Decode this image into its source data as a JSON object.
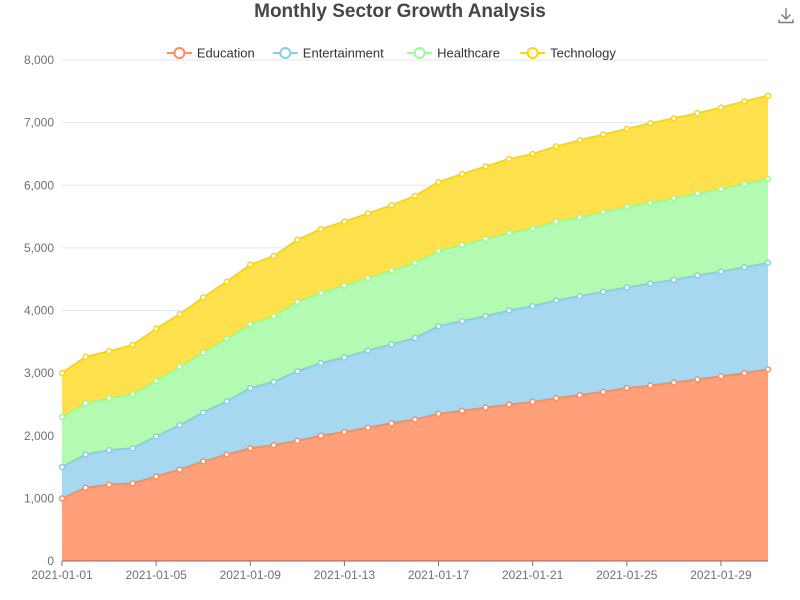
{
  "toolbar": {
    "download_icon": "download-icon"
  },
  "chart_data": {
    "type": "area",
    "stacked": true,
    "title": "Monthly Sector Growth Analysis",
    "xlabel": "",
    "ylabel": "",
    "ylim": [
      0,
      8000
    ],
    "yticks": [
      0,
      1000,
      2000,
      3000,
      4000,
      5000,
      6000,
      7000,
      8000
    ],
    "ytick_labels": [
      "0",
      "1,000",
      "2,000",
      "3,000",
      "4,000",
      "5,000",
      "6,000",
      "7,000",
      "8,000"
    ],
    "x": [
      "2021-01-01",
      "2021-01-02",
      "2021-01-03",
      "2021-01-04",
      "2021-01-05",
      "2021-01-06",
      "2021-01-07",
      "2021-01-08",
      "2021-01-09",
      "2021-01-10",
      "2021-01-11",
      "2021-01-12",
      "2021-01-13",
      "2021-01-14",
      "2021-01-15",
      "2021-01-16",
      "2021-01-17",
      "2021-01-18",
      "2021-01-19",
      "2021-01-20",
      "2021-01-21",
      "2021-01-22",
      "2021-01-23",
      "2021-01-24",
      "2021-01-25",
      "2021-01-26",
      "2021-01-27",
      "2021-01-28",
      "2021-01-29",
      "2021-01-30",
      "2021-01-31"
    ],
    "xtick_labels": [
      "2021-01-01",
      "2021-01-05",
      "2021-01-09",
      "2021-01-13",
      "2021-01-17",
      "2021-01-21",
      "2021-01-25",
      "2021-01-29"
    ],
    "grid": {
      "horizontal": true,
      "vertical": false
    },
    "legend_position": "top-center",
    "series": [
      {
        "name": "Education",
        "color": "#ff8c5a",
        "fill": "#ffa07a",
        "values": [
          1000,
          1170,
          1220,
          1240,
          1350,
          1460,
          1590,
          1700,
          1800,
          1850,
          1920,
          2000,
          2060,
          2130,
          2200,
          2260,
          2350,
          2400,
          2450,
          2500,
          2540,
          2600,
          2650,
          2700,
          2760,
          2800,
          2850,
          2900,
          2950,
          3000,
          3060
        ]
      },
      {
        "name": "Entertainment",
        "color": "#87ceeb",
        "fill": "#a8d8ef",
        "values": [
          500,
          530,
          550,
          560,
          640,
          710,
          780,
          850,
          960,
          1010,
          1110,
          1160,
          1190,
          1230,
          1260,
          1300,
          1400,
          1430,
          1460,
          1500,
          1530,
          1560,
          1580,
          1600,
          1610,
          1630,
          1640,
          1660,
          1670,
          1690,
          1700
        ]
      },
      {
        "name": "Healthcare",
        "color": "#98fb98",
        "fill": "#b3fbb3",
        "values": [
          800,
          820,
          830,
          860,
          890,
          930,
          960,
          1000,
          1020,
          1050,
          1110,
          1120,
          1150,
          1160,
          1180,
          1200,
          1200,
          1220,
          1230,
          1240,
          1240,
          1260,
          1260,
          1270,
          1290,
          1290,
          1300,
          1310,
          1320,
          1330,
          1340
        ]
      },
      {
        "name": "Technology",
        "color": "#ffd700",
        "fill": "#ffe14d",
        "values": [
          700,
          740,
          750,
          790,
          830,
          840,
          880,
          910,
          950,
          960,
          990,
          1020,
          1020,
          1030,
          1040,
          1070,
          1100,
          1130,
          1160,
          1180,
          1190,
          1200,
          1230,
          1240,
          1240,
          1270,
          1280,
          1280,
          1300,
          1320,
          1330
        ]
      }
    ]
  }
}
